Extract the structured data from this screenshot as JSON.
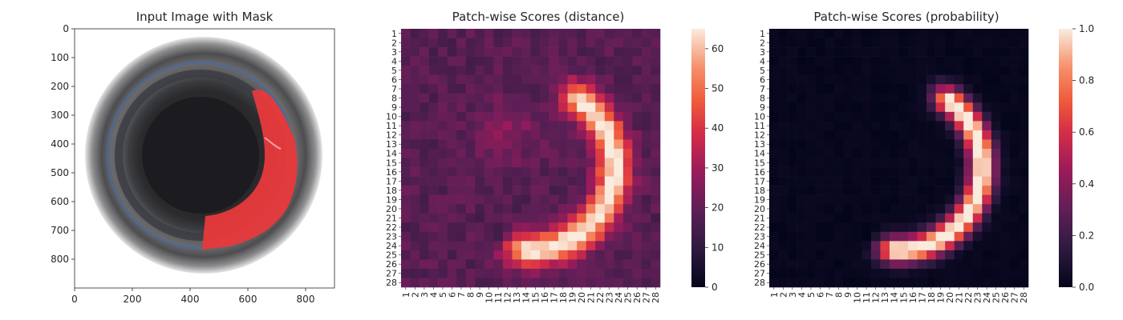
{
  "chart_data": [
    {
      "type": "image",
      "title": "Input Image with Mask",
      "xticks": [
        0,
        200,
        400,
        600,
        800
      ],
      "yticks": [
        0,
        100,
        200,
        300,
        400,
        500,
        600,
        700,
        800
      ],
      "xlim": [
        0,
        900
      ],
      "ylim": [
        900,
        0
      ],
      "image_description": "circular dark bottle cap with red mask overlay on right side",
      "mask_color": "#e8393c"
    },
    {
      "type": "heatmap",
      "title": "Patch-wise Scores (distance)",
      "rows": [
        "1",
        "2",
        "3",
        "4",
        "5",
        "6",
        "7",
        "8",
        "9",
        "10",
        "11",
        "12",
        "13",
        "14",
        "15",
        "16",
        "17",
        "18",
        "19",
        "20",
        "21",
        "22",
        "23",
        "24",
        "25",
        "26",
        "27",
        "28"
      ],
      "cols": [
        "1",
        "2",
        "3",
        "4",
        "5",
        "6",
        "7",
        "8",
        "9",
        "10",
        "11",
        "12",
        "13",
        "14",
        "15",
        "16",
        "17",
        "18",
        "19",
        "20",
        "21",
        "22",
        "23",
        "24",
        "25",
        "26",
        "27",
        "28"
      ],
      "colorbar_ticks": [
        0,
        10,
        20,
        30,
        40,
        50,
        60
      ],
      "vmin": 0,
      "vmax": 65,
      "colormap": "rocket"
    },
    {
      "type": "heatmap",
      "title": "Patch-wise Scores (probability)",
      "rows": [
        "1",
        "2",
        "3",
        "4",
        "5",
        "6",
        "7",
        "8",
        "9",
        "10",
        "11",
        "12",
        "13",
        "14",
        "15",
        "16",
        "17",
        "18",
        "19",
        "20",
        "21",
        "22",
        "23",
        "24",
        "25",
        "26",
        "27",
        "28"
      ],
      "cols": [
        "1",
        "2",
        "3",
        "4",
        "5",
        "6",
        "7",
        "8",
        "9",
        "10",
        "11",
        "12",
        "13",
        "14",
        "15",
        "16",
        "17",
        "18",
        "19",
        "20",
        "21",
        "22",
        "23",
        "24",
        "25",
        "26",
        "27",
        "28"
      ],
      "colorbar_ticks": [
        "0.0",
        "0.2",
        "0.4",
        "0.6",
        "0.8",
        "1.0"
      ],
      "vmin": 0,
      "vmax": 1,
      "colormap": "rocket"
    }
  ]
}
